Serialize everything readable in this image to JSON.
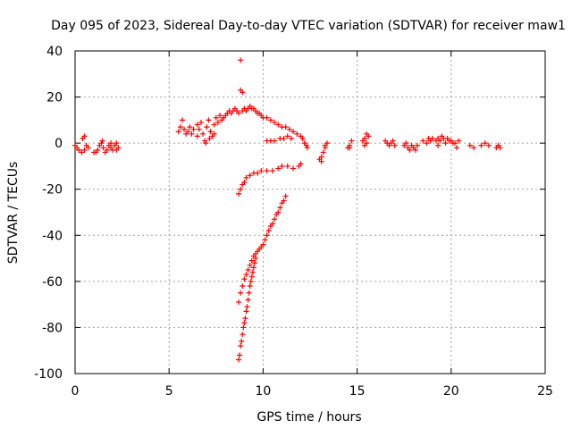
{
  "chart_data": {
    "type": "scatter",
    "title": "Day 095 of 2023, Sidereal Day-to-day VTEC variation (SDTVAR) for receiver maw1",
    "xlabel": "GPS time / hours",
    "ylabel": "SDTVAR / TECUs",
    "xlim": [
      0,
      25
    ],
    "ylim": [
      -100,
      40
    ],
    "x_ticks": [
      "0",
      "5",
      "10",
      "15",
      "20",
      "25"
    ],
    "y_ticks": [
      "-100",
      "-80",
      "-60",
      "-40",
      "-20",
      "0",
      "20",
      "40"
    ],
    "grid": true,
    "marker": "+",
    "color": "#ff0000",
    "series": [
      {
        "name": "SDTVAR",
        "points": [
          [
            0.0,
            -1
          ],
          [
            0.1,
            -2
          ],
          [
            0.2,
            -3
          ],
          [
            0.35,
            -4
          ],
          [
            0.5,
            -3
          ],
          [
            0.6,
            -1
          ],
          [
            0.7,
            -2
          ],
          [
            0.4,
            2
          ],
          [
            0.5,
            3
          ],
          [
            1.0,
            -4
          ],
          [
            1.2,
            -3
          ],
          [
            1.3,
            -1
          ],
          [
            1.4,
            0
          ],
          [
            1.5,
            -2
          ],
          [
            1.6,
            -4
          ],
          [
            1.7,
            -3
          ],
          [
            1.8,
            -1
          ],
          [
            1.9,
            -2
          ],
          [
            2.0,
            -3
          ],
          [
            2.1,
            -1
          ],
          [
            2.2,
            0
          ],
          [
            2.3,
            -2
          ],
          [
            1.45,
            1
          ],
          [
            1.9,
            0
          ],
          [
            2.2,
            -3
          ],
          [
            1.1,
            -4
          ],
          [
            5.5,
            5
          ],
          [
            5.6,
            7
          ],
          [
            5.7,
            10
          ],
          [
            5.8,
            6
          ],
          [
            5.9,
            4
          ],
          [
            6.0,
            5
          ],
          [
            6.1,
            7
          ],
          [
            6.2,
            4
          ],
          [
            6.3,
            6
          ],
          [
            6.5,
            3
          ],
          [
            6.6,
            6
          ],
          [
            6.7,
            9
          ],
          [
            6.8,
            4
          ],
          [
            6.9,
            1
          ],
          [
            7.0,
            7
          ],
          [
            7.1,
            10
          ],
          [
            7.2,
            5
          ],
          [
            7.3,
            3
          ],
          [
            7.4,
            8
          ],
          [
            7.5,
            11
          ],
          [
            7.6,
            9
          ],
          [
            7.7,
            12
          ],
          [
            7.8,
            10
          ],
          [
            7.9,
            11
          ],
          [
            8.0,
            12
          ],
          [
            8.1,
            13
          ],
          [
            8.2,
            14
          ],
          [
            8.3,
            13
          ],
          [
            8.4,
            14
          ],
          [
            8.5,
            15
          ],
          [
            8.6,
            14
          ],
          [
            8.7,
            13
          ],
          [
            6.95,
            0
          ],
          [
            7.15,
            2
          ],
          [
            6.5,
            8
          ],
          [
            7.4,
            4
          ],
          [
            8.8,
            36
          ],
          [
            8.8,
            23
          ],
          [
            8.9,
            22
          ],
          [
            8.9,
            14
          ],
          [
            9.0,
            15
          ],
          [
            9.1,
            14
          ],
          [
            9.2,
            15
          ],
          [
            9.3,
            16
          ],
          [
            9.4,
            15
          ],
          [
            9.5,
            15
          ],
          [
            9.6,
            14
          ],
          [
            9.7,
            13
          ],
          [
            9.8,
            13
          ],
          [
            9.9,
            12
          ],
          [
            10.0,
            11
          ],
          [
            10.2,
            11
          ],
          [
            10.4,
            10
          ],
          [
            10.6,
            9
          ],
          [
            10.8,
            8
          ],
          [
            11.0,
            7
          ],
          [
            11.2,
            7
          ],
          [
            11.4,
            6
          ],
          [
            11.6,
            5
          ],
          [
            11.8,
            4
          ],
          [
            12.0,
            3
          ],
          [
            12.1,
            2
          ],
          [
            12.2,
            0
          ],
          [
            12.3,
            -1
          ],
          [
            12.35,
            -2
          ],
          [
            8.7,
            -22
          ],
          [
            8.8,
            -20
          ],
          [
            8.9,
            -18
          ],
          [
            9.0,
            -17
          ],
          [
            9.1,
            -15
          ],
          [
            9.3,
            -14
          ],
          [
            9.5,
            -13
          ],
          [
            9.7,
            -13
          ],
          [
            9.9,
            -12
          ],
          [
            10.2,
            -12
          ],
          [
            10.5,
            -12
          ],
          [
            10.8,
            -11
          ],
          [
            11.0,
            -10
          ],
          [
            11.3,
            -10
          ],
          [
            11.6,
            -11
          ],
          [
            11.9,
            -10
          ],
          [
            12.0,
            -9
          ],
          [
            10.2,
            1
          ],
          [
            10.4,
            1
          ],
          [
            10.6,
            1
          ],
          [
            10.9,
            2
          ],
          [
            11.1,
            2
          ],
          [
            11.3,
            3
          ],
          [
            11.5,
            2
          ],
          [
            8.7,
            -69
          ],
          [
            8.8,
            -65
          ],
          [
            8.9,
            -62
          ],
          [
            9.0,
            -59
          ],
          [
            9.1,
            -57
          ],
          [
            9.2,
            -55
          ],
          [
            9.3,
            -53
          ],
          [
            9.4,
            -51
          ],
          [
            9.5,
            -49
          ],
          [
            9.6,
            -48
          ],
          [
            9.7,
            -47
          ],
          [
            9.8,
            -46
          ],
          [
            9.9,
            -45
          ],
          [
            10.0,
            -44
          ],
          [
            10.1,
            -42
          ],
          [
            10.2,
            -40
          ],
          [
            10.3,
            -38
          ],
          [
            10.4,
            -36
          ],
          [
            10.5,
            -35
          ],
          [
            10.6,
            -33
          ],
          [
            10.7,
            -31
          ],
          [
            10.8,
            -30
          ],
          [
            10.9,
            -28
          ],
          [
            11.0,
            -26
          ],
          [
            11.1,
            -25
          ],
          [
            11.2,
            -23
          ],
          [
            8.7,
            -94
          ],
          [
            8.75,
            -92
          ],
          [
            8.8,
            -88
          ],
          [
            8.85,
            -86
          ],
          [
            8.9,
            -83
          ],
          [
            8.95,
            -80
          ],
          [
            9.0,
            -78
          ],
          [
            9.05,
            -76
          ],
          [
            9.1,
            -73
          ],
          [
            9.15,
            -71
          ],
          [
            9.2,
            -68
          ],
          [
            9.25,
            -65
          ],
          [
            9.3,
            -62
          ],
          [
            9.35,
            -60
          ],
          [
            9.4,
            -58
          ],
          [
            9.45,
            -56
          ],
          [
            9.5,
            -54
          ],
          [
            9.55,
            -52
          ],
          [
            9.6,
            -50
          ],
          [
            13.0,
            -7
          ],
          [
            13.1,
            -6
          ],
          [
            13.2,
            -4
          ],
          [
            13.3,
            -2
          ],
          [
            13.4,
            0
          ],
          [
            13.1,
            -8
          ],
          [
            13.3,
            -1
          ],
          [
            14.5,
            -2
          ],
          [
            14.6,
            -1
          ],
          [
            14.7,
            1
          ],
          [
            14.6,
            -2
          ],
          [
            15.3,
            1
          ],
          [
            15.4,
            2
          ],
          [
            15.5,
            0
          ],
          [
            15.6,
            3
          ],
          [
            15.5,
            4
          ],
          [
            15.4,
            -1
          ],
          [
            16.5,
            1
          ],
          [
            16.6,
            0
          ],
          [
            16.7,
            -1
          ],
          [
            16.8,
            0
          ],
          [
            16.9,
            1
          ],
          [
            17.0,
            -1
          ],
          [
            17.5,
            -1
          ],
          [
            17.6,
            0
          ],
          [
            17.7,
            -2
          ],
          [
            17.8,
            -3
          ],
          [
            17.9,
            -1
          ],
          [
            18.0,
            -2
          ],
          [
            18.1,
            -3
          ],
          [
            18.2,
            -1
          ],
          [
            18.5,
            1
          ],
          [
            18.7,
            0
          ],
          [
            18.8,
            2
          ],
          [
            18.9,
            1
          ],
          [
            19.0,
            2
          ],
          [
            19.2,
            1
          ],
          [
            19.3,
            2
          ],
          [
            19.4,
            1
          ],
          [
            19.5,
            3
          ],
          [
            19.6,
            2
          ],
          [
            19.7,
            0
          ],
          [
            19.8,
            2
          ],
          [
            19.9,
            1
          ],
          [
            20.0,
            1
          ],
          [
            20.1,
            0
          ],
          [
            20.2,
            0
          ],
          [
            20.4,
            1
          ],
          [
            19.3,
            -1
          ],
          [
            20.3,
            -2
          ],
          [
            21.0,
            -1
          ],
          [
            21.2,
            -2
          ],
          [
            21.6,
            -1
          ],
          [
            21.8,
            0
          ],
          [
            22.0,
            -1
          ],
          [
            22.4,
            -2
          ],
          [
            22.5,
            -1
          ],
          [
            22.6,
            -2
          ]
        ]
      }
    ]
  }
}
